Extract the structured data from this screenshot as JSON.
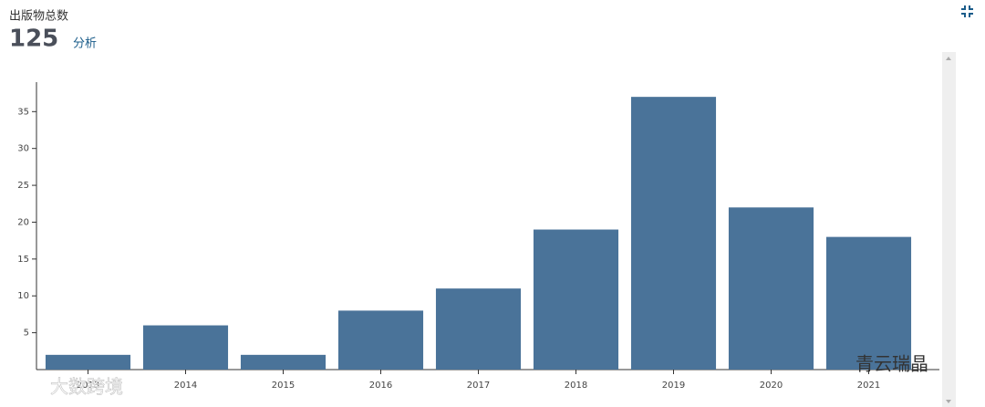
{
  "header": {
    "title": "出版物总数",
    "total": 125,
    "link": "分析"
  },
  "chart_data": {
    "type": "bar",
    "categories": [
      "2013",
      "2014",
      "2015",
      "2016",
      "2017",
      "2018",
      "2019",
      "2020",
      "2021"
    ],
    "values": [
      2,
      6,
      2,
      8,
      11,
      19,
      37,
      22,
      18
    ],
    "color": "#4a7399",
    "ylim": [
      0,
      39
    ],
    "yticks": [
      5,
      10,
      15,
      20,
      25,
      30,
      35
    ],
    "grid": false
  },
  "watermarks": [
    "大数跨境",
    "青云瑞晶"
  ]
}
